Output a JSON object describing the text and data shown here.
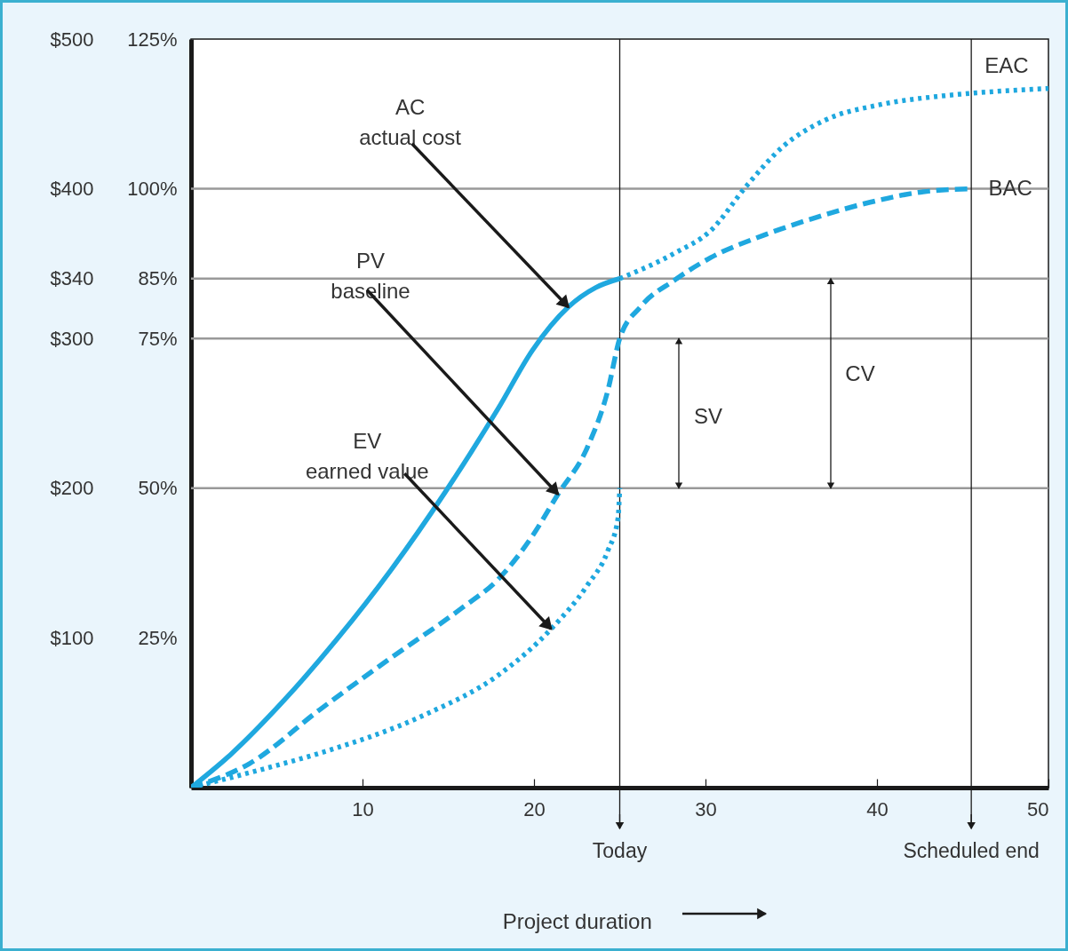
{
  "chart_data": {
    "type": "line",
    "xlabel": "Project duration",
    "xlim": [
      0,
      50
    ],
    "xticks": [
      10,
      20,
      30,
      40,
      50
    ],
    "ylim": [
      0,
      500
    ],
    "yticks": [
      {
        "value": 100,
        "label": "$100"
      },
      {
        "value": 200,
        "label": "$200"
      },
      {
        "value": 300,
        "label": "$300"
      },
      {
        "value": 340,
        "label": "$340"
      },
      {
        "value": 400,
        "label": "$400"
      },
      {
        "value": 500,
        "label": "$500"
      }
    ],
    "y2lim": [
      0,
      125
    ],
    "y2ticks": [
      {
        "value": 25,
        "label": "25%"
      },
      {
        "value": 50,
        "label": "50%"
      },
      {
        "value": 75,
        "label": "75%"
      },
      {
        "value": 85,
        "label": "85%"
      },
      {
        "value": 100,
        "label": "100%"
      },
      {
        "value": 125,
        "label": "125%"
      }
    ],
    "series": [
      {
        "color": "#1fa8df",
        "line_style": "solid",
        "x": [
          0,
          2.3,
          5.4,
          8.5,
          11.7,
          14.8,
          17.9,
          19.9,
          22,
          23.6,
          25
        ],
        "values": [
          0,
          22,
          58,
          99,
          146,
          197,
          253,
          292,
          321,
          334,
          340
        ]
      },
      {
        "color": "#1fa8df",
        "line_style": "dashed",
        "x": [
          0,
          3.4,
          7.5,
          11.7,
          15.8,
          17.9,
          19.9,
          21.4,
          23.1,
          24.3,
          25,
          26.2,
          28.2,
          30.3,
          33.4,
          36.5,
          39.6,
          42.7,
          45.5
        ],
        "values": [
          0,
          16,
          52,
          87,
          120,
          139,
          168,
          196,
          227,
          265,
          300,
          321,
          339,
          354,
          369,
          381,
          391,
          398,
          400
        ]
      },
      {
        "color": "#1fa8df",
        "line_style": "dotted",
        "x": [
          0,
          4.4,
          7.5,
          13.7,
          17.9,
          21,
          23.1,
          24.3,
          24.9,
          25
        ],
        "values": [
          0,
          13,
          23,
          49,
          75,
          106,
          135,
          158,
          180,
          200
        ]
      },
      {
        "color": "#1fa8df",
        "line_style": "dotted",
        "x": [
          25,
          28.2,
          30.3,
          32.4,
          34.5,
          37,
          40.1,
          43.8,
          46.9,
          50
        ],
        "values": [
          340,
          357,
          372,
          402,
          428,
          446,
          456,
          462,
          465,
          467
        ]
      }
    ],
    "ref_lines": [
      {
        "axis": "y",
        "value": 400,
        "color": "#999999"
      },
      {
        "axis": "y",
        "value": 340,
        "color": "#999999"
      },
      {
        "axis": "y",
        "value": 300,
        "color": "#999999"
      },
      {
        "axis": "y",
        "value": 200,
        "color": "#999999"
      },
      {
        "axis": "x",
        "value": 25,
        "label": "Today",
        "color": "#1a1a1a"
      },
      {
        "axis": "x",
        "value": 45.5,
        "label": "Scheduled end",
        "color": "#1a1a1a"
      }
    ],
    "annotations": [
      {
        "text": "AC\nactual cost",
        "x": 22,
        "y": 321
      },
      {
        "text": "PV\nbaseline",
        "x": 21.4,
        "y": 196
      },
      {
        "text": "EV\nearned value",
        "x": 21,
        "y": 106
      },
      "SV",
      "CV",
      {
        "text": "EAC",
        "x": 50,
        "y": 467
      },
      {
        "text": "BAC",
        "x": 45.5,
        "y": 400
      }
    ]
  }
}
